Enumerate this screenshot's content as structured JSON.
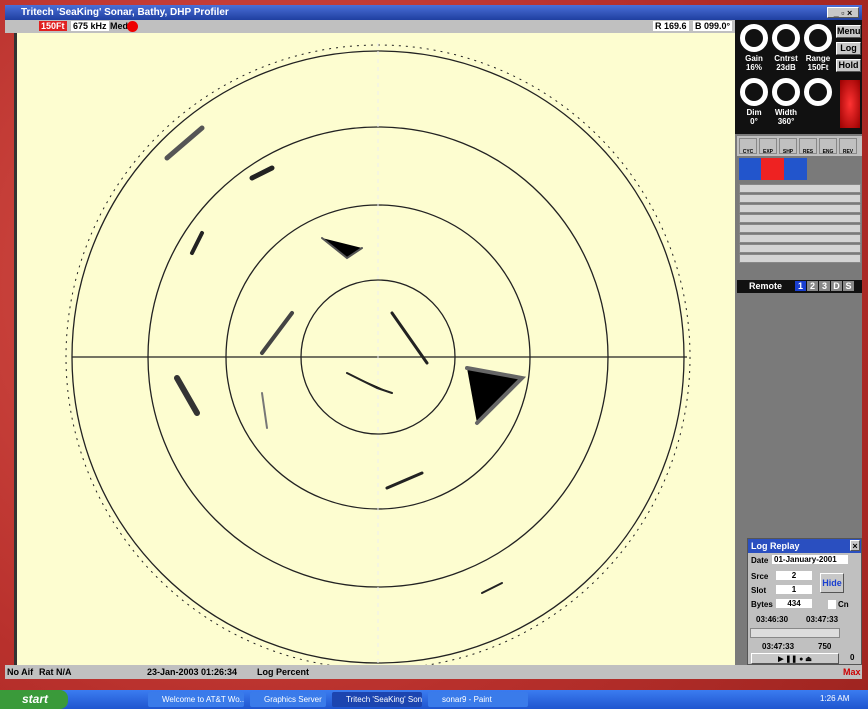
{
  "window": {
    "title": "Tritech 'SeaKing' Sonar, Bathy, DHP Profiler"
  },
  "toolbar": {
    "range": "150Ft",
    "frequency": "675 kHz",
    "mode": "Med",
    "range_readout": "R 169.6",
    "bearing_readout": "B 099.0°"
  },
  "controls": {
    "knobs": [
      {
        "label": "Gain",
        "value": "16%"
      },
      {
        "label": "Cntrst",
        "value": "23dB"
      },
      {
        "label": "Range",
        "value": "150Ft"
      },
      {
        "label": "Dim",
        "value": "0°"
      },
      {
        "label": "Width",
        "value": "360°"
      }
    ],
    "buttons": [
      "Menu",
      "Log",
      "Hold"
    ],
    "tools": [
      "CYC",
      "EXP",
      "SHP",
      "RES",
      "ENG",
      "REV"
    ],
    "remote": "Remote",
    "channels": [
      "1",
      "2",
      "3",
      "D",
      "S"
    ]
  },
  "log_replay": {
    "title": "Log Replay",
    "date_label": "Date",
    "date": "01-January-2001",
    "srce_label": "Srce",
    "srce": "2",
    "slot_label": "Slot",
    "slot": "1",
    "bytes_label": "Bytes",
    "bytes": "434",
    "hide": "Hide",
    "cn": "Cn",
    "start_time": "03:46:30",
    "end_time": "03:47:33",
    "current_time": "03:47:33",
    "rate": "750",
    "counter": "0"
  },
  "status": {
    "aif": "No Aif",
    "rat": "Rat N/A",
    "datetime": "23-Jan-2003 01:26:34",
    "log": "Log Percent",
    "max": "Max"
  },
  "taskbar": {
    "start": "start",
    "items": [
      "Welcome to AT&T Wo...",
      "Graphics Server",
      "Tritech 'SeaKing' Son...",
      "sonar9 - Paint"
    ],
    "clock": "1:26 AM"
  }
}
